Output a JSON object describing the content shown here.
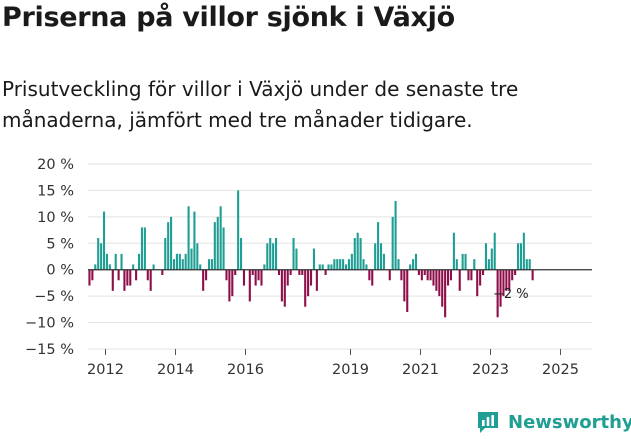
{
  "chart_data": {
    "type": "bar",
    "title": "Priserna på villor sjönk i Växjö",
    "subtitle": "Prisutveckling för villor i Växjö under de senaste tre månaderna, jämfört med tre månader tidigare.",
    "ylim": [
      -15,
      20
    ],
    "yticks": [
      20,
      15,
      10,
      5,
      0,
      -5,
      -10,
      -15
    ],
    "ytick_labels": [
      "20 %",
      "15 %",
      "10 %",
      "5 %",
      "0 %",
      "−5 %",
      "−10 %",
      "−15 %"
    ],
    "x_start": 2011.5,
    "x_end": 2025.9,
    "xticks": [
      2012,
      2014,
      2016,
      2019,
      2021,
      2023,
      2025
    ],
    "xtick_labels": [
      "2012",
      "2014",
      "2016",
      "2019",
      "2021",
      "2023",
      "2025"
    ],
    "x_step": 0.0833,
    "values": [
      -3,
      -2,
      1,
      6,
      5,
      11,
      3,
      1,
      -4,
      3,
      -2,
      3,
      -4,
      -3,
      -3,
      1,
      -2,
      3,
      8,
      8,
      -2,
      -4,
      1,
      0,
      0,
      -1,
      6,
      9,
      10,
      2,
      3,
      3,
      2,
      3,
      12,
      4,
      11,
      5,
      1,
      -4,
      -2,
      2,
      2,
      9,
      10,
      12,
      8,
      -2,
      -6,
      -5,
      -1,
      15,
      6,
      -3,
      0,
      -6,
      -1,
      -3,
      -2,
      -3,
      1,
      5,
      6,
      5,
      6,
      -1,
      -6,
      -7,
      -3,
      -1,
      6,
      4,
      -1,
      -1,
      -7,
      -5,
      -3,
      4,
      -4,
      1,
      1,
      -1,
      1,
      1,
      2,
      2,
      2,
      2,
      1,
      2,
      3,
      6,
      7,
      6,
      2,
      1,
      -2,
      -3,
      5,
      9,
      5,
      3,
      0,
      -2,
      10,
      13,
      2,
      -2,
      -6,
      -8,
      1,
      2,
      3,
      -1,
      -2,
      -1,
      -2,
      -2,
      -3,
      -4,
      -5,
      -7,
      -9,
      -3,
      -2,
      7,
      2,
      -4,
      3,
      3,
      -2,
      -2,
      2,
      -5,
      -3,
      -1,
      5,
      2,
      4,
      7,
      -9,
      -7,
      -5,
      -4,
      -4,
      -2,
      -1,
      5,
      5,
      7,
      2,
      2,
      -2
    ],
    "last_value_label": "−2 %",
    "positive_color": "#1f9e93",
    "negative_color": "#8e0e49",
    "grid": true
  },
  "branding": {
    "name": "Newsworthy",
    "color": "#1f9e93"
  }
}
